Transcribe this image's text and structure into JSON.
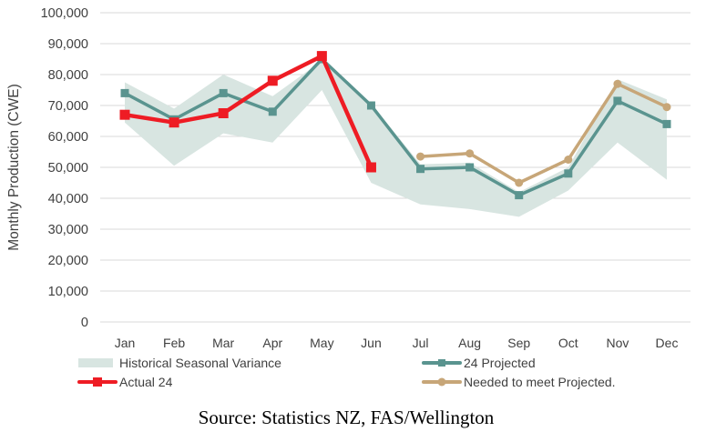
{
  "chart_data": {
    "type": "line",
    "title": "",
    "ylabel": "Monthly Production (CWE)",
    "xlabel": "",
    "ylim": [
      0,
      100000
    ],
    "yticks": [
      0,
      10000,
      20000,
      30000,
      40000,
      50000,
      60000,
      70000,
      80000,
      90000,
      100000
    ],
    "ytick_labels": [
      "0",
      "10,000",
      "20,000",
      "30,000",
      "40,000",
      "50,000",
      "60,000",
      "70,000",
      "80,000",
      "90,000",
      "100,000"
    ],
    "grid": true,
    "gridline_color": "#d9d9d9",
    "text_color": "#404040",
    "legend_position": "bottom",
    "categories": [
      "Jan",
      "Feb",
      "Mar",
      "Apr",
      "May",
      "Jun",
      "Jul",
      "Aug",
      "Sep",
      "Oct",
      "Nov",
      "Dec"
    ],
    "band": {
      "name": "Historical Seasonal Variance",
      "color": "#d8e5e1",
      "upper": [
        77500,
        69000,
        80000,
        73000,
        84500,
        70500,
        51000,
        51500,
        42000,
        50000,
        78500,
        72000
      ],
      "lower": [
        64500,
        50500,
        61000,
        58000,
        75000,
        45000,
        38000,
        36500,
        34000,
        42500,
        58000,
        46000
      ]
    },
    "series": [
      {
        "name": "24 Projected",
        "color": "#5a948f",
        "marker": "square",
        "values": [
          74000,
          65500,
          74000,
          68000,
          85000,
          70000,
          49500,
          50000,
          41000,
          48000,
          71500,
          64000
        ]
      },
      {
        "name": "Actual 24",
        "color": "#ee1c24",
        "marker": "square",
        "values": [
          67000,
          64500,
          67500,
          78000,
          86000,
          50000,
          null,
          null,
          null,
          null,
          null,
          null
        ]
      },
      {
        "name": "Needed to meet Projected.",
        "color": "#c7a678",
        "marker": "circle",
        "values": [
          null,
          null,
          null,
          null,
          null,
          null,
          53500,
          54500,
          45000,
          52500,
          77000,
          69500
        ]
      }
    ]
  },
  "source_text": "Source: Statistics NZ, FAS/Wellington"
}
